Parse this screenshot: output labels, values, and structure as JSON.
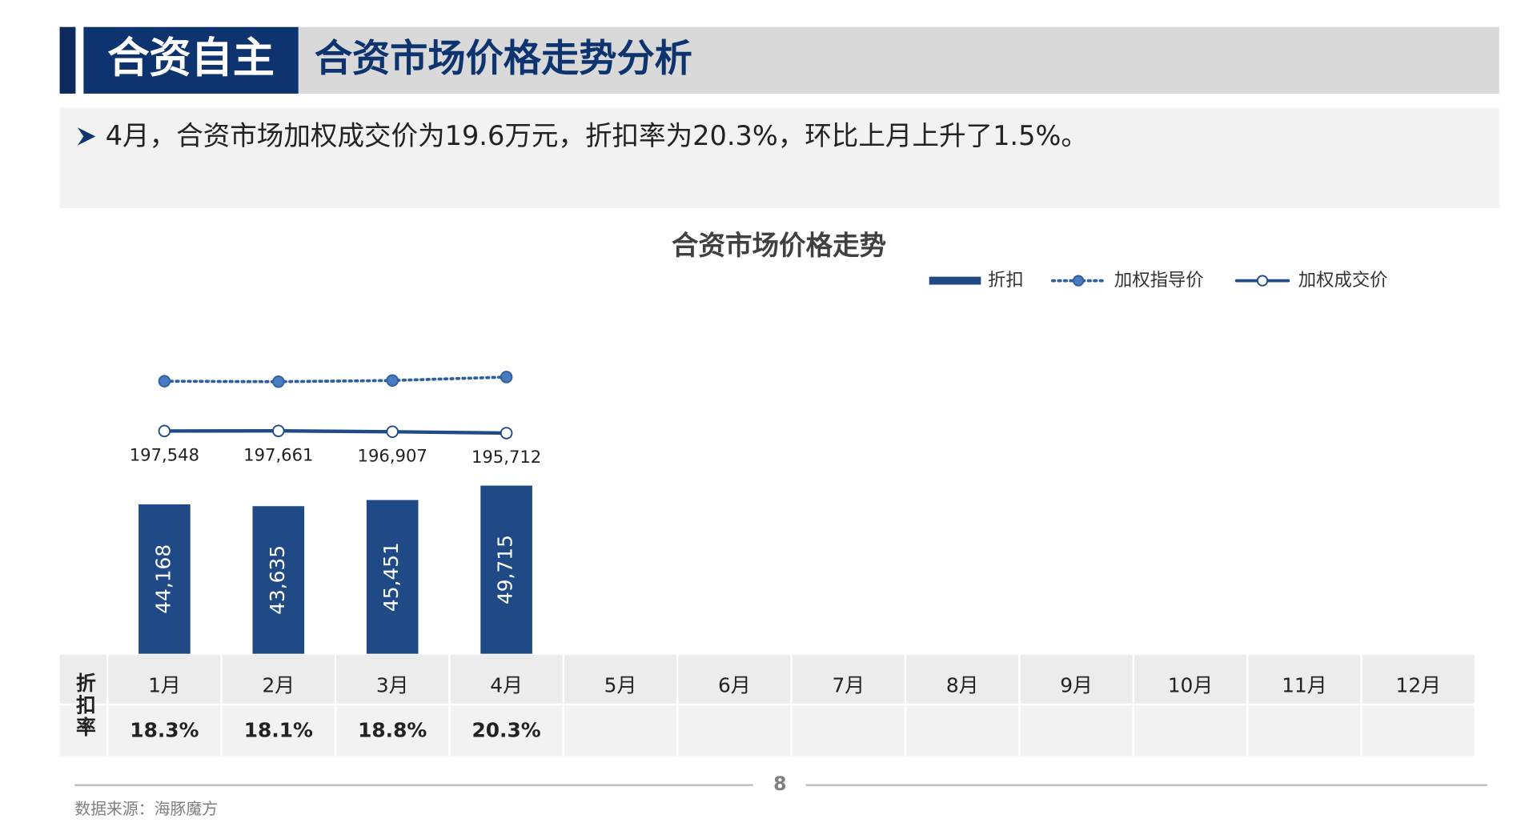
{
  "header": {
    "tag": "合资自主",
    "title": "合资市场价格走势分析"
  },
  "summary": "4月，合资市场加权成交价为19.6万元，折扣率为20.3%，环比上月上升了1.5%。",
  "chart_data": {
    "type": "bar",
    "title": "合资市场价格走势",
    "categories": [
      "1月",
      "2月",
      "3月",
      "4月",
      "5月",
      "6月",
      "7月",
      "8月",
      "9月",
      "10月",
      "11月",
      "12月"
    ],
    "ylim": [
      0,
      100000
    ],
    "y2lim": [
      0,
      300000
    ],
    "series": [
      {
        "name": "折扣",
        "type": "bar",
        "color": "#1f4a86",
        "values": [
          44168,
          43635,
          45451,
          49715,
          null,
          null,
          null,
          null,
          null,
          null,
          null,
          null
        ],
        "value_labels": [
          "44,168",
          "43,635",
          "45,451",
          "49,715",
          null,
          null,
          null,
          null,
          null,
          null,
          null,
          null
        ]
      },
      {
        "name": "加权指导价",
        "type": "line",
        "axis": "y2",
        "style": "dotted",
        "color": "#2f5f9e",
        "values": [
          241716,
          241296,
          242358,
          245427,
          null,
          null,
          null,
          null,
          null,
          null,
          null,
          null
        ]
      },
      {
        "name": "加权成交价",
        "type": "line",
        "axis": "y2",
        "style": "solid",
        "color": "#1f4a86",
        "values": [
          197548,
          197661,
          196907,
          195712,
          null,
          null,
          null,
          null,
          null,
          null,
          null,
          null
        ],
        "value_labels": [
          "197,548",
          "197,661",
          "196,907",
          "195,712",
          null,
          null,
          null,
          null,
          null,
          null,
          null,
          null
        ]
      }
    ],
    "table": {
      "row_label": "折扣率",
      "values": [
        "18.3%",
        "18.1%",
        "18.8%",
        "20.3%"
      ]
    }
  },
  "footer": {
    "page": "8",
    "source": "数据来源：海豚魔方"
  }
}
